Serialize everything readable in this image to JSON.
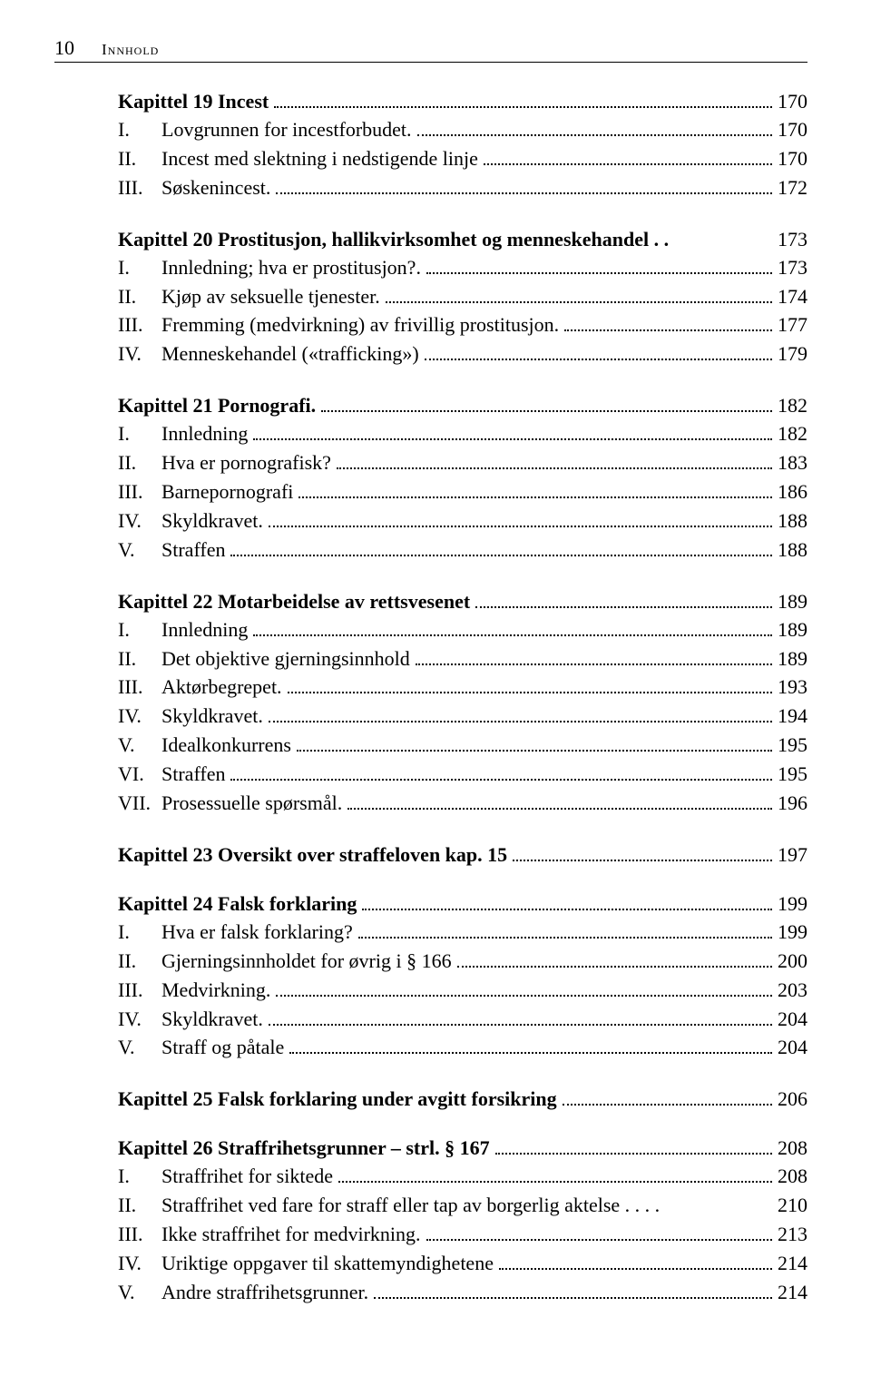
{
  "header": {
    "page_number": "10",
    "title": "Innhold"
  },
  "chapters": [
    {
      "title": "Kapittel 19 Incest",
      "page": "170",
      "entries": [
        {
          "roman": "I.",
          "label": "Lovgrunnen for incestforbudet.",
          "page": "170"
        },
        {
          "roman": "II.",
          "label": "Incest med slektning i nedstigende linje",
          "page": "170"
        },
        {
          "roman": "III.",
          "label": "Søskenincest.",
          "page": "172"
        }
      ]
    },
    {
      "title": "Kapittel 20 Prostitusjon, hallikvirksomhet og menneskehandel . .",
      "page": "173",
      "no_dots": true,
      "entries": [
        {
          "roman": "I.",
          "label": "Innledning; hva er prostitusjon?.",
          "page": "173"
        },
        {
          "roman": "II.",
          "label": "Kjøp av seksuelle tjenester.",
          "page": "174"
        },
        {
          "roman": "III.",
          "label": "Fremming (medvirkning) av frivillig prostitusjon.",
          "page": "177"
        },
        {
          "roman": "IV.",
          "label": "Menneskehandel («trafficking»)",
          "page": "179"
        }
      ]
    },
    {
      "title": "Kapittel 21 Pornografi.",
      "page": "182",
      "entries": [
        {
          "roman": "I.",
          "label": "Innledning",
          "page": "182"
        },
        {
          "roman": "II.",
          "label": "Hva er pornografisk?",
          "page": "183"
        },
        {
          "roman": "III.",
          "label": "Barnepornografi",
          "page": "186"
        },
        {
          "roman": "IV.",
          "label": "Skyldkravet.",
          "page": "188"
        },
        {
          "roman": "V.",
          "label": "Straffen",
          "page": "188"
        }
      ]
    },
    {
      "title": "Kapittel 22 Motarbeidelse av rettsvesenet",
      "page": "189",
      "entries": [
        {
          "roman": "I.",
          "label": "Innledning",
          "page": "189"
        },
        {
          "roman": "II.",
          "label": "Det objektive gjerningsinnhold",
          "page": "189"
        },
        {
          "roman": "III.",
          "label": "Aktørbegrepet.",
          "page": "193"
        },
        {
          "roman": "IV.",
          "label": "Skyldkravet.",
          "page": "194"
        },
        {
          "roman": "V.",
          "label": "Idealkonkurrens",
          "page": "195"
        },
        {
          "roman": "VI.",
          "label": "Straffen",
          "page": "195"
        },
        {
          "roman": "VII.",
          "label": "Prosessuelle spørsmål.",
          "page": "196"
        }
      ]
    },
    {
      "title": "Kapittel 23 Oversikt over straffeloven kap. 15",
      "page": "197",
      "entries": []
    },
    {
      "title": "Kapittel 24 Falsk forklaring",
      "page": "199",
      "entries": [
        {
          "roman": "I.",
          "label": "Hva er falsk forklaring?",
          "page": "199"
        },
        {
          "roman": "II.",
          "label": "Gjerningsinnholdet for øvrig i § 166",
          "page": "200"
        },
        {
          "roman": "III.",
          "label": "Medvirkning.",
          "page": "203"
        },
        {
          "roman": "IV.",
          "label": "Skyldkravet.",
          "page": "204"
        },
        {
          "roman": "V.",
          "label": "Straff og påtale",
          "page": "204"
        }
      ]
    },
    {
      "title": "Kapittel 25 Falsk forklaring under avgitt forsikring",
      "page": "206",
      "entries": []
    },
    {
      "title": "Kapittel 26 Straffrihetsgrunner – strl. § 167",
      "page": "208",
      "entries": [
        {
          "roman": "I.",
          "label": "Straffrihet for siktede",
          "page": "208"
        },
        {
          "roman": "II.",
          "label": "Straffrihet ved fare for straff eller tap av borgerlig aktelse . . . .",
          "page": "210",
          "no_dots": true
        },
        {
          "roman": "III.",
          "label": "Ikke straffrihet for medvirkning.",
          "page": "213"
        },
        {
          "roman": "IV.",
          "label": "Uriktige oppgaver til skattemyndighetene",
          "page": "214"
        },
        {
          "roman": "V.",
          "label": "Andre straffrihetsgrunner.",
          "page": "214"
        }
      ]
    }
  ]
}
